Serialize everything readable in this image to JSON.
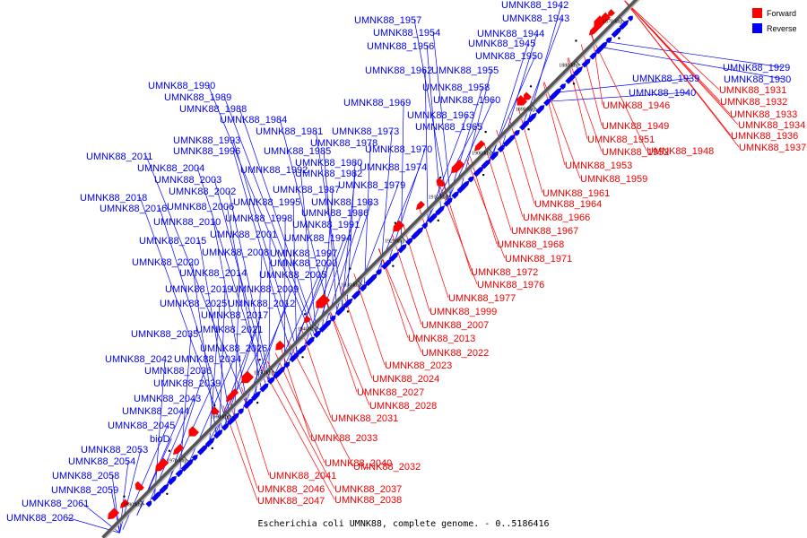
{
  "caption": "Escherichia coli UMNK88, complete genome. - 0..5186416",
  "legend": [
    {
      "label": "Forward",
      "color": "#ff0000"
    },
    {
      "label": "Reverse",
      "color": "#0000ff"
    }
  ],
  "colors": {
    "forward": "#ff0000",
    "reverse": "#0000ff",
    "axis": "#555555"
  },
  "tick_labels": [
    "1870 kbp",
    "1880 kbp",
    "1890 kbp",
    "1900 kbp",
    "1910 kbp",
    "1920 kbp",
    "1930 kbp",
    "1940 kbp",
    "1950 kbp",
    "1960 kbp",
    "1970 kbp",
    "1980 kbp"
  ],
  "reverse_labels": [
    "UMNK88_1942",
    "UMNK88_1957",
    "UMNK88_1943",
    "UMNK88_1954",
    "UMNK88_1944",
    "UMNK88_1956",
    "UMNK88_1945",
    "UMNK88_1950",
    "UMNK88_1962",
    "UMNK88_1955",
    "UMNK88_1958",
    "UMNK88_1990",
    "UMNK88_1960",
    "UMNK88_1989",
    "UMNK88_1969",
    "UMNK88_1988",
    "UMNK88_1963",
    "UMNK88_1984",
    "UMNK88_1965",
    "UMNK88_1981",
    "UMNK88_1973",
    "UMNK88_1993",
    "UMNK88_1978",
    "UMNK88_1996",
    "UMNK88_1985",
    "UMNK88_1970",
    "UMNK88_2011",
    "UMNK88_1980",
    "UMNK88_2004",
    "UMNK88_1992",
    "UMNK88_1982",
    "UMNK88_1974",
    "UMNK88_2003",
    "UMNK88_1987",
    "UMNK88_1979",
    "UMNK88_2002",
    "UMNK88_2018",
    "UMNK88_1995",
    "UMNK88_1983",
    "UMNK88_2016",
    "UMNK88_2006",
    "UMNK88_1986",
    "UMNK88_1998",
    "UMNK88_2010",
    "UMNK88_1991",
    "UMNK88_2001",
    "UMNK88_1994",
    "UMNK88_2015",
    "UMNK88_2008",
    "UMNK88_1997",
    "UMNK88_2020",
    "UMNK88_2000",
    "UMNK88_2014",
    "UMNK88_2005",
    "UMNK88_2019",
    "UMNK88_2009",
    "UMNK88_2025",
    "UMNK88_2012",
    "UMNK88_2017",
    "UMNK88_2035",
    "UMNK88_2021",
    "UMNK88_2026",
    "UMNK88_2042",
    "UMNK88_2034",
    "UMNK88_2036",
    "UMNK88_2039",
    "UMNK88_2043",
    "UMNK88_2044",
    "UMNK88_2045",
    "bioD",
    "UMNK88_2053",
    "UMNK88_2054",
    "UMNK88_2058",
    "UMNK88_2059",
    "UMNK88_2061",
    "UMNK88_2062",
    "UMNK88_1929",
    "UMNK88_1930",
    "UMNK88_1939",
    "UMNK88_1940"
  ],
  "forward_labels": [
    "UMNK88_1931",
    "UMNK88_1946",
    "UMNK88_1932",
    "UMNK88_1933",
    "UMNK88_1949",
    "UMNK88_1934",
    "UMNK88_1951",
    "UMNK88_1936",
    "UMNK88_1952",
    "UMNK88_1948",
    "UMNK88_1937",
    "UMNK88_1953",
    "UMNK88_1959",
    "UMNK88_1961",
    "UMNK88_1964",
    "UMNK88_1966",
    "UMNK88_1967",
    "UMNK88_1968",
    "UMNK88_1971",
    "UMNK88_1972",
    "UMNK88_1976",
    "UMNK88_1977",
    "UMNK88_1999",
    "UMNK88_2007",
    "UMNK88_2013",
    "UMNK88_2022",
    "UMNK88_2023",
    "UMNK88_2024",
    "UMNK88_2027",
    "UMNK88_2028",
    "UMNK88_2031",
    "UMNK88_2033",
    "UMNK88_2040",
    "UMNK88_2032",
    "UMNK88_2041",
    "UMNK88_2046",
    "UMNK88_2037",
    "UMNK88_2047",
    "UMNK88_2038"
  ]
}
